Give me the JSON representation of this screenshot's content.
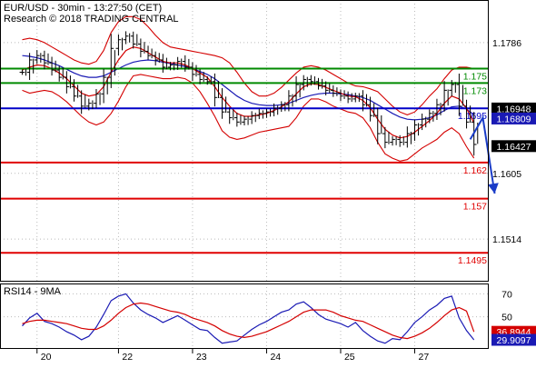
{
  "header": {
    "line1": "EUR/USD - 30min - 13:27:50 (CET)",
    "line2": "Research © 2018 TRADING CENTRAL"
  },
  "colors": {
    "candle": "#000000",
    "ma_fast": "#d40000",
    "ma_slow": "#1a1ab4",
    "bollinger": "#d40000",
    "resistance": "#008a00",
    "pivot": "#0000c8",
    "support": "#e00000",
    "arrow": "#1a3cc8",
    "rsi": "#1a1ab4",
    "rsi_ma": "#d40000",
    "label_box": "#000000",
    "label_box_blue": "#1a1ab4",
    "label_box_red": "#d40000",
    "grid": "#bbbbbb"
  },
  "chart_data": [
    {
      "type": "candlestick",
      "title": "EUR/USD - 30min",
      "ylim": [
        1.1455,
        1.1845
      ],
      "y_ticks": [
        {
          "value": 1.1786,
          "label": "1.1786"
        },
        {
          "value": 1.1605,
          "label": "1.1605"
        },
        {
          "value": 1.1514,
          "label": "1.1514"
        }
      ],
      "x_ticks": [
        {
          "x": 2,
          "label": "20"
        },
        {
          "x": 13,
          "label": "22"
        },
        {
          "x": 23,
          "label": "23"
        },
        {
          "x": 33,
          "label": "24"
        },
        {
          "x": 43,
          "label": "25"
        },
        {
          "x": 53,
          "label": "27"
        }
      ],
      "x_range": [
        -3,
        63
      ],
      "close": [
        1.1745,
        1.1762,
        1.1768,
        1.1758,
        1.1748,
        1.1738,
        1.1725,
        1.1712,
        1.1698,
        1.1702,
        1.1715,
        1.1738,
        1.1778,
        1.179,
        1.1795,
        1.1784,
        1.1774,
        1.1768,
        1.1762,
        1.1752,
        1.1755,
        1.176,
        1.1752,
        1.1742,
        1.1735,
        1.1732,
        1.171,
        1.169,
        1.1682,
        1.1676,
        1.168,
        1.1685,
        1.1688,
        1.169,
        1.1695,
        1.17,
        1.1712,
        1.1728,
        1.1735,
        1.1732,
        1.1726,
        1.172,
        1.1716,
        1.1712,
        1.1708,
        1.1712,
        1.17,
        1.1685,
        1.166,
        1.1648,
        1.1652,
        1.1648,
        1.166,
        1.1672,
        1.168,
        1.1688,
        1.17,
        1.172,
        1.1728,
        1.1698,
        1.1676,
        1.1645
      ],
      "ma_fast": [
        1.1748,
        1.1752,
        1.1755,
        1.1754,
        1.175,
        1.1744,
        1.1736,
        1.1726,
        1.1716,
        1.1712,
        1.1714,
        1.1725,
        1.1745,
        1.1762,
        1.1775,
        1.178,
        1.1778,
        1.1772,
        1.1766,
        1.176,
        1.1758,
        1.1758,
        1.1755,
        1.175,
        1.1744,
        1.1738,
        1.1725,
        1.171,
        1.1698,
        1.1688,
        1.1684,
        1.1684,
        1.1686,
        1.1688,
        1.1692,
        1.1697,
        1.1704,
        1.1715,
        1.1725,
        1.1729,
        1.1728,
        1.1724,
        1.172,
        1.1716,
        1.1712,
        1.1711,
        1.1706,
        1.1696,
        1.168,
        1.1666,
        1.1658,
        1.1654,
        1.1656,
        1.1662,
        1.167,
        1.1678,
        1.1688,
        1.1702,
        1.1712,
        1.1708,
        1.1695,
        1.1675
      ],
      "ma_slow": [
        1.1768,
        1.1767,
        1.1765,
        1.1762,
        1.1758,
        1.1754,
        1.1749,
        1.1744,
        1.174,
        1.1738,
        1.1738,
        1.174,
        1.1745,
        1.175,
        1.1755,
        1.1759,
        1.1761,
        1.1762,
        1.1761,
        1.1759,
        1.1757,
        1.1755,
        1.1753,
        1.175,
        1.1746,
        1.1742,
        1.1736,
        1.1728,
        1.172,
        1.1712,
        1.1706,
        1.1702,
        1.17,
        1.1699,
        1.1699,
        1.17,
        1.1702,
        1.1706,
        1.171,
        1.1713,
        1.1715,
        1.1716,
        1.1716,
        1.1715,
        1.1714,
        1.1712,
        1.171,
        1.1706,
        1.17,
        1.1694,
        1.1688,
        1.1683,
        1.168,
        1.1679,
        1.168,
        1.1682,
        1.1686,
        1.1692,
        1.1697,
        1.1698,
        1.1694,
        1.1686
      ],
      "bollinger_upper": [
        1.179,
        1.1792,
        1.179,
        1.1786,
        1.178,
        1.1774,
        1.1768,
        1.1762,
        1.1758,
        1.1756,
        1.176,
        1.1775,
        1.18,
        1.1815,
        1.1822,
        1.1822,
        1.1818,
        1.1808,
        1.1796,
        1.1786,
        1.178,
        1.1778,
        1.1776,
        1.1774,
        1.1772,
        1.177,
        1.1768,
        1.1765,
        1.1758,
        1.1745,
        1.173,
        1.1718,
        1.1712,
        1.1712,
        1.1716,
        1.1724,
        1.1734,
        1.1744,
        1.1752,
        1.1754,
        1.1752,
        1.1748,
        1.1742,
        1.1736,
        1.173,
        1.1726,
        1.1725,
        1.1722,
        1.1718,
        1.1708,
        1.1698,
        1.169,
        1.1686,
        1.169,
        1.17,
        1.1712,
        1.1722,
        1.1736,
        1.1748,
        1.1752,
        1.1752,
        1.175
      ],
      "bollinger_lower": [
        1.172,
        1.1716,
        1.1718,
        1.172,
        1.1718,
        1.1712,
        1.1704,
        1.1694,
        1.1684,
        1.1676,
        1.1672,
        1.1676,
        1.1688,
        1.1705,
        1.1725,
        1.174,
        1.1742,
        1.174,
        1.1738,
        1.1736,
        1.1736,
        1.1738,
        1.1736,
        1.173,
        1.1718,
        1.1702,
        1.1684,
        1.1664,
        1.1655,
        1.1652,
        1.1654,
        1.1658,
        1.1662,
        1.1664,
        1.1666,
        1.1668,
        1.167,
        1.1682,
        1.1698,
        1.1708,
        1.1708,
        1.1704,
        1.1698,
        1.1694,
        1.169,
        1.1688,
        1.1682,
        1.1668,
        1.1648,
        1.1632,
        1.1626,
        1.1622,
        1.1624,
        1.1632,
        1.164,
        1.1646,
        1.1652,
        1.1662,
        1.1668,
        1.166,
        1.1642,
        1.1626
      ],
      "levels": [
        {
          "value": 1.175,
          "label": "1.175",
          "role": "resistance"
        },
        {
          "value": 1.173,
          "label": "1.173",
          "role": "resistance"
        },
        {
          "value": 1.1695,
          "label": "1.1695",
          "role": "pivot"
        },
        {
          "value": 1.162,
          "label": "1.162",
          "role": "support"
        },
        {
          "value": 1.157,
          "label": "1.157",
          "role": "support"
        },
        {
          "value": 1.1495,
          "label": "1.1495",
          "role": "support"
        }
      ],
      "price_tags": [
        {
          "value": 1.16948,
          "label": "1.16948",
          "style": "black"
        },
        {
          "value": 1.16809,
          "label": "1.16809",
          "style": "blue"
        },
        {
          "value": 1.16427,
          "label": "1.16427",
          "style": "black"
        }
      ],
      "projection": {
        "from": [
          60.5,
          1.1652
        ],
        "via": [
          62.2,
          1.1682
        ],
        "to": [
          63.8,
          1.1577
        ]
      }
    },
    {
      "type": "line",
      "title": "RSI14 - 9MA",
      "ylim": [
        22,
        79
      ],
      "y_ticks": [
        {
          "value": 70,
          "label": "70"
        },
        {
          "value": 50,
          "label": "50"
        }
      ],
      "series": [
        {
          "name": "RSI14",
          "values": [
            42,
            49,
            53,
            46,
            44,
            41,
            37,
            34,
            30,
            33,
            41,
            52,
            64,
            68,
            70,
            62,
            56,
            52,
            49,
            45,
            48,
            51,
            47,
            43,
            39,
            38,
            32,
            27,
            28,
            29,
            34,
            39,
            43,
            46,
            50,
            54,
            56,
            61,
            63,
            58,
            52,
            48,
            46,
            44,
            41,
            45,
            38,
            33,
            29,
            27,
            31,
            30,
            37,
            45,
            50,
            56,
            60,
            66,
            68,
            49,
            38,
            29.9097
          ]
        },
        {
          "name": "9MA",
          "values": [
            44,
            46,
            47,
            47,
            46,
            45,
            44,
            42,
            40,
            39,
            39,
            42,
            47,
            53,
            58,
            61,
            62,
            61,
            59,
            57,
            55,
            54,
            52,
            49,
            47,
            45,
            42,
            38,
            35,
            33,
            32,
            33,
            35,
            37,
            40,
            43,
            46,
            50,
            54,
            56,
            56,
            56,
            54,
            51,
            49,
            47,
            46,
            43,
            40,
            37,
            34,
            32,
            31,
            33,
            36,
            40,
            45,
            51,
            56,
            58,
            55,
            36.8944
          ]
        }
      ],
      "value_tags": [
        {
          "value": 36.8944,
          "label": "36.8944",
          "style": "red"
        },
        {
          "value": 29.9097,
          "label": "29.9097",
          "style": "blue"
        }
      ]
    }
  ]
}
